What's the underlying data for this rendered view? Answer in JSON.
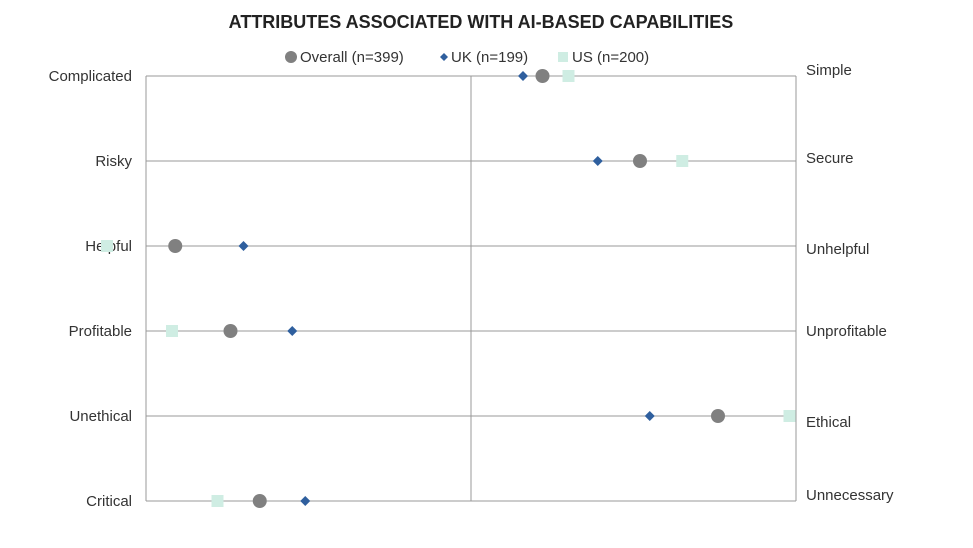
{
  "chart_data": {
    "type": "scatter",
    "title": "ATTRIBUTES ASSOCIATED WITH AI-BASED CAPABILITIES",
    "xlim": [
      -1,
      1
    ],
    "legend_position": "top-center",
    "grid": true,
    "rows": [
      {
        "left": "Complicated",
        "right": "Simple"
      },
      {
        "left": "Risky",
        "right": "Secure"
      },
      {
        "left": "Helpful",
        "right": "Unhelpful"
      },
      {
        "left": "Profitable",
        "right": "Unprofitable"
      },
      {
        "left": "Unethical",
        "right": "Ethical"
      },
      {
        "left": "Critical",
        "right": "Unnecessary"
      }
    ],
    "series": [
      {
        "name": "Overall (n=399)",
        "marker": "circle",
        "color": "#808080",
        "values": [
          0.22,
          0.52,
          -0.91,
          -0.74,
          0.76,
          -0.65
        ]
      },
      {
        "name": "UK (n=199)",
        "marker": "diamond",
        "color": "#2F5F9E",
        "values": [
          0.16,
          0.39,
          -0.7,
          -0.55,
          0.55,
          -0.51
        ]
      },
      {
        "name": "US (n=200)",
        "marker": "square",
        "color": "#CFEDE3",
        "values": [
          0.3,
          0.65,
          -1.12,
          -0.92,
          0.98,
          -0.78
        ]
      }
    ]
  }
}
